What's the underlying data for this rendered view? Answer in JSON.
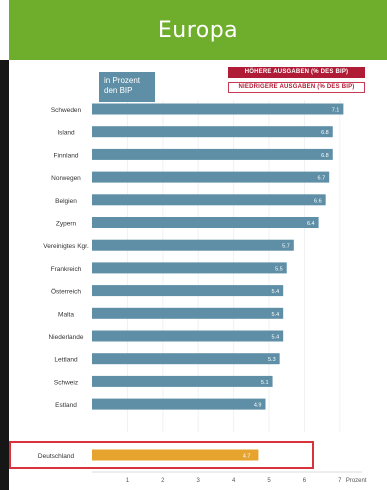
{
  "header": {
    "title": "Europa"
  },
  "colors": {
    "header_bg": "#6fae2c",
    "bar": "#5e8fa6",
    "highlight_bar": "#e6a32e",
    "accent_red": "#b01c35",
    "highlight_box": "#d8323d"
  },
  "chart_data": {
    "type": "bar",
    "orientation": "horizontal",
    "unit_label": "in Prozent\nden BIP",
    "legend": [
      "HÖHERE AUSGABEN (% DES BIP)",
      "NIEDRIGERE AUSGABEN (% DES BIP)"
    ],
    "categories": [
      "Schweden",
      "Island",
      "Finnland",
      "Norwegen",
      "Belgien",
      "Zypern",
      "Vereinigtes Kgr.",
      "Frankreich",
      "Österreich",
      "Malta",
      "Niederlande",
      "Lettland",
      "Schweiz",
      "Estland"
    ],
    "values": [
      7.1,
      6.8,
      6.8,
      6.7,
      6.6,
      6.4,
      5.7,
      5.5,
      5.4,
      5.4,
      5.4,
      5.3,
      5.1,
      4.9
    ],
    "value_labels": [
      "7.1",
      "6.8",
      "6.8",
      "6.7",
      "6.6",
      "6.4",
      "5.7",
      "5.5",
      "5.4",
      "5.4",
      "5.4",
      "5.3",
      "5.1",
      "4.9"
    ],
    "highlight": {
      "category": "Deutschland",
      "value": 4.7,
      "value_label": "4.7"
    },
    "xticks": [
      1,
      2,
      3,
      4,
      5,
      6,
      7
    ],
    "xtick_labels": [
      "1",
      "2",
      "3",
      "4",
      "5",
      "6",
      "7"
    ],
    "x_unit": "Prozent",
    "xlim": [
      0,
      7.4
    ]
  }
}
